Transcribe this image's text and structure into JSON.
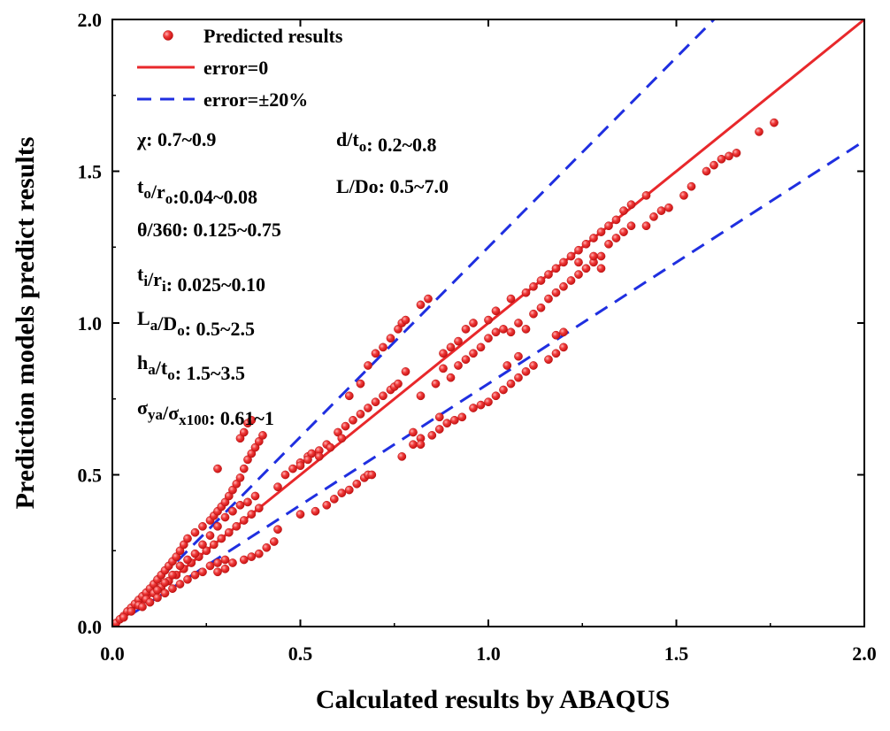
{
  "chart_data": {
    "type": "scatter",
    "xlabel": "Calculated results by ABAQUS",
    "ylabel": "Prediction models predict results",
    "xlim": [
      0.0,
      2.0
    ],
    "ylim": [
      0.0,
      2.0
    ],
    "xticks": [
      "0.0",
      "0.5",
      "1.0",
      "1.5",
      "2.0"
    ],
    "yticks": [
      "0.0",
      "0.5",
      "1.0",
      "1.5",
      "2.0"
    ],
    "grid": false,
    "legend_position": "top-left",
    "legend": [
      {
        "label": "Predicted results",
        "style": "red-dot"
      },
      {
        "label": "error=0",
        "style": "red-solid"
      },
      {
        "label": "error=±20%",
        "style": "blue-dashed"
      }
    ],
    "colors": {
      "points": "#e8282b",
      "error_zero": "#e8282b",
      "error_band": "#1f2fe0"
    },
    "lines": [
      {
        "name": "error=0",
        "slope": 1.0
      },
      {
        "name": "error=+20%",
        "slope": 1.25
      },
      {
        "name": "error=-20%",
        "slope": 0.8
      }
    ],
    "params": [
      {
        "main": "χ: 0.7~0.9",
        "parts": [
          {
            "t": "χ: 0.7~0.9"
          }
        ]
      },
      {
        "main": "d/t: 0.2~0.8",
        "parts": [
          {
            "t": "d/t"
          },
          {
            "t": "o",
            "sub": true
          },
          {
            "t": ": 0.2~0.8"
          }
        ]
      },
      {
        "main": "t/r:0.04~0.08",
        "parts": [
          {
            "t": "t"
          },
          {
            "t": "o",
            "sub": true
          },
          {
            "t": "/r"
          },
          {
            "t": "o",
            "sub": true
          },
          {
            "t": ":0.04~0.08"
          }
        ]
      },
      {
        "main": "L/Do: 0.5~7.0",
        "parts": [
          {
            "t": "L/Do: 0.5~7.0"
          }
        ]
      },
      {
        "main": "θ/360: 0.125~0.75",
        "parts": [
          {
            "t": "θ/360: 0.125~0.75"
          }
        ]
      },
      {
        "main": "t/r: 0.025~0.10",
        "parts": [
          {
            "t": "t"
          },
          {
            "t": "i",
            "sub": true
          },
          {
            "t": "/r"
          },
          {
            "t": "i",
            "sub": true
          },
          {
            "t": ": 0.025~0.10"
          }
        ]
      },
      {
        "main": "L/D: 0.5~2.5",
        "parts": [
          {
            "t": "L"
          },
          {
            "t": "a",
            "sub": true
          },
          {
            "t": "/D"
          },
          {
            "t": "o",
            "sub": true
          },
          {
            "t": ": 0.5~2.5"
          }
        ]
      },
      {
        "main": "h/t: 1.5~3.5",
        "parts": [
          {
            "t": "h"
          },
          {
            "t": "a",
            "sub": true
          },
          {
            "t": "/t"
          },
          {
            "t": "o",
            "sub": true
          },
          {
            "t": ": 1.5~3.5"
          }
        ]
      },
      {
        "main": "σ/σ: 0.61~1",
        "parts": [
          {
            "t": "σ"
          },
          {
            "t": "ya",
            "sub": true
          },
          {
            "t": "/σ"
          },
          {
            "t": "x100",
            "sub": true
          },
          {
            "t": ": 0.61~1"
          }
        ]
      }
    ],
    "series": [
      {
        "name": "Predicted results",
        "points": [
          [
            0.01,
            0.012
          ],
          [
            0.02,
            0.024
          ],
          [
            0.03,
            0.035
          ],
          [
            0.04,
            0.05
          ],
          [
            0.05,
            0.062
          ],
          [
            0.06,
            0.075
          ],
          [
            0.07,
            0.088
          ],
          [
            0.08,
            0.1
          ],
          [
            0.09,
            0.112
          ],
          [
            0.1,
            0.125
          ],
          [
            0.11,
            0.14
          ],
          [
            0.12,
            0.155
          ],
          [
            0.13,
            0.17
          ],
          [
            0.14,
            0.185
          ],
          [
            0.15,
            0.2
          ],
          [
            0.16,
            0.215
          ],
          [
            0.17,
            0.23
          ],
          [
            0.18,
            0.25
          ],
          [
            0.19,
            0.27
          ],
          [
            0.2,
            0.29
          ],
          [
            0.22,
            0.31
          ],
          [
            0.24,
            0.33
          ],
          [
            0.26,
            0.35
          ],
          [
            0.27,
            0.365
          ],
          [
            0.28,
            0.38
          ],
          [
            0.29,
            0.395
          ],
          [
            0.3,
            0.41
          ],
          [
            0.31,
            0.43
          ],
          [
            0.32,
            0.45
          ],
          [
            0.33,
            0.47
          ],
          [
            0.34,
            0.49
          ],
          [
            0.35,
            0.52
          ],
          [
            0.36,
            0.55
          ],
          [
            0.37,
            0.57
          ],
          [
            0.38,
            0.59
          ],
          [
            0.39,
            0.61
          ],
          [
            0.4,
            0.63
          ],
          [
            0.34,
            0.62
          ],
          [
            0.35,
            0.64
          ],
          [
            0.36,
            0.67
          ],
          [
            0.37,
            0.68
          ],
          [
            0.28,
            0.52
          ],
          [
            0.03,
            0.03
          ],
          [
            0.05,
            0.05
          ],
          [
            0.07,
            0.07
          ],
          [
            0.09,
            0.09
          ],
          [
            0.11,
            0.11
          ],
          [
            0.13,
            0.13
          ],
          [
            0.15,
            0.15
          ],
          [
            0.17,
            0.17
          ],
          [
            0.19,
            0.19
          ],
          [
            0.21,
            0.21
          ],
          [
            0.23,
            0.23
          ],
          [
            0.25,
            0.25
          ],
          [
            0.27,
            0.27
          ],
          [
            0.29,
            0.29
          ],
          [
            0.31,
            0.31
          ],
          [
            0.33,
            0.33
          ],
          [
            0.35,
            0.35
          ],
          [
            0.37,
            0.37
          ],
          [
            0.39,
            0.39
          ],
          [
            0.08,
            0.065
          ],
          [
            0.1,
            0.08
          ],
          [
            0.12,
            0.095
          ],
          [
            0.14,
            0.11
          ],
          [
            0.16,
            0.125
          ],
          [
            0.18,
            0.14
          ],
          [
            0.2,
            0.155
          ],
          [
            0.22,
            0.17
          ],
          [
            0.24,
            0.18
          ],
          [
            0.26,
            0.2
          ],
          [
            0.28,
            0.21
          ],
          [
            0.3,
            0.22
          ],
          [
            0.32,
            0.21
          ],
          [
            0.35,
            0.22
          ],
          [
            0.37,
            0.23
          ],
          [
            0.39,
            0.24
          ],
          [
            0.41,
            0.26
          ],
          [
            0.43,
            0.28
          ],
          [
            0.44,
            0.32
          ],
          [
            0.28,
            0.18
          ],
          [
            0.3,
            0.19
          ],
          [
            0.12,
            0.12
          ],
          [
            0.14,
            0.145
          ],
          [
            0.16,
            0.17
          ],
          [
            0.18,
            0.2
          ],
          [
            0.2,
            0.22
          ],
          [
            0.22,
            0.24
          ],
          [
            0.24,
            0.27
          ],
          [
            0.26,
            0.3
          ],
          [
            0.28,
            0.33
          ],
          [
            0.3,
            0.36
          ],
          [
            0.32,
            0.38
          ],
          [
            0.34,
            0.4
          ],
          [
            0.36,
            0.41
          ],
          [
            0.38,
            0.43
          ],
          [
            0.44,
            0.46
          ],
          [
            0.46,
            0.5
          ],
          [
            0.48,
            0.52
          ],
          [
            0.5,
            0.54
          ],
          [
            0.52,
            0.56
          ],
          [
            0.53,
            0.57
          ],
          [
            0.55,
            0.58
          ],
          [
            0.57,
            0.6
          ],
          [
            0.6,
            0.64
          ],
          [
            0.62,
            0.66
          ],
          [
            0.64,
            0.68
          ],
          [
            0.66,
            0.7
          ],
          [
            0.68,
            0.72
          ],
          [
            0.7,
            0.74
          ],
          [
            0.72,
            0.76
          ],
          [
            0.74,
            0.78
          ],
          [
            0.75,
            0.79
          ],
          [
            0.76,
            0.8
          ],
          [
            0.78,
            0.84
          ],
          [
            0.5,
            0.37
          ],
          [
            0.54,
            0.38
          ],
          [
            0.57,
            0.4
          ],
          [
            0.59,
            0.42
          ],
          [
            0.61,
            0.44
          ],
          [
            0.63,
            0.45
          ],
          [
            0.65,
            0.47
          ],
          [
            0.67,
            0.49
          ],
          [
            0.68,
            0.5
          ],
          [
            0.69,
            0.5
          ],
          [
            0.5,
            0.53
          ],
          [
            0.52,
            0.55
          ],
          [
            0.55,
            0.56
          ],
          [
            0.58,
            0.59
          ],
          [
            0.61,
            0.62
          ],
          [
            0.63,
            0.76
          ],
          [
            0.66,
            0.8
          ],
          [
            0.68,
            0.86
          ],
          [
            0.7,
            0.9
          ],
          [
            0.72,
            0.92
          ],
          [
            0.74,
            0.95
          ],
          [
            0.76,
            0.98
          ],
          [
            0.77,
            1.0
          ],
          [
            0.78,
            1.01
          ],
          [
            0.82,
            1.06
          ],
          [
            0.84,
            1.08
          ],
          [
            0.77,
            0.56
          ],
          [
            0.8,
            0.6
          ],
          [
            0.82,
            0.62
          ],
          [
            0.85,
            0.63
          ],
          [
            0.87,
            0.65
          ],
          [
            0.89,
            0.67
          ],
          [
            0.91,
            0.68
          ],
          [
            0.93,
            0.69
          ],
          [
            0.96,
            0.72
          ],
          [
            0.98,
            0.73
          ],
          [
            1.0,
            0.74
          ],
          [
            1.02,
            0.76
          ],
          [
            1.04,
            0.78
          ],
          [
            1.06,
            0.8
          ],
          [
            1.08,
            0.82
          ],
          [
            1.1,
            0.84
          ],
          [
            1.12,
            0.86
          ],
          [
            1.16,
            0.88
          ],
          [
            1.18,
            0.9
          ],
          [
            1.2,
            0.92
          ],
          [
            0.82,
            0.76
          ],
          [
            0.86,
            0.8
          ],
          [
            0.88,
            0.85
          ],
          [
            0.9,
            0.82
          ],
          [
            0.92,
            0.86
          ],
          [
            0.94,
            0.88
          ],
          [
            0.96,
            0.9
          ],
          [
            0.98,
            0.92
          ],
          [
            1.0,
            0.95
          ],
          [
            1.02,
            0.97
          ],
          [
            1.04,
            0.98
          ],
          [
            1.06,
            0.97
          ],
          [
            1.08,
            1.0
          ],
          [
            1.1,
            0.98
          ],
          [
            1.12,
            1.03
          ],
          [
            1.14,
            1.05
          ],
          [
            1.16,
            1.08
          ],
          [
            1.18,
            1.1
          ],
          [
            1.2,
            1.12
          ],
          [
            1.22,
            1.14
          ],
          [
            1.24,
            1.16
          ],
          [
            1.26,
            1.18
          ],
          [
            1.28,
            1.2
          ],
          [
            1.3,
            1.22
          ],
          [
            0.88,
            0.9
          ],
          [
            0.9,
            0.92
          ],
          [
            0.92,
            0.94
          ],
          [
            0.94,
            0.98
          ],
          [
            0.96,
            1.0
          ],
          [
            1.0,
            1.01
          ],
          [
            1.02,
            1.04
          ],
          [
            1.06,
            1.08
          ],
          [
            1.1,
            1.1
          ],
          [
            1.12,
            1.12
          ],
          [
            1.14,
            1.14
          ],
          [
            1.16,
            1.16
          ],
          [
            1.18,
            1.18
          ],
          [
            1.2,
            1.2
          ],
          [
            1.22,
            1.22
          ],
          [
            1.24,
            1.24
          ],
          [
            1.26,
            1.26
          ],
          [
            1.28,
            1.28
          ],
          [
            1.3,
            1.3
          ],
          [
            1.32,
            1.32
          ],
          [
            1.34,
            1.34
          ],
          [
            1.36,
            1.37
          ],
          [
            1.38,
            1.39
          ],
          [
            1.42,
            1.42
          ],
          [
            1.24,
            1.2
          ],
          [
            1.28,
            1.22
          ],
          [
            1.3,
            1.18
          ],
          [
            1.32,
            1.26
          ],
          [
            1.34,
            1.28
          ],
          [
            1.36,
            1.3
          ],
          [
            1.38,
            1.32
          ],
          [
            1.42,
            1.32
          ],
          [
            1.44,
            1.35
          ],
          [
            1.46,
            1.37
          ],
          [
            1.48,
            1.38
          ],
          [
            1.52,
            1.42
          ],
          [
            1.54,
            1.45
          ],
          [
            1.58,
            1.5
          ],
          [
            1.6,
            1.52
          ],
          [
            1.62,
            1.54
          ],
          [
            1.64,
            1.55
          ],
          [
            1.66,
            1.56
          ],
          [
            1.72,
            1.63
          ],
          [
            1.76,
            1.66
          ],
          [
            0.8,
            0.64
          ],
          [
            0.82,
            0.6
          ],
          [
            0.87,
            0.69
          ],
          [
            1.2,
            0.97
          ],
          [
            1.18,
            0.96
          ],
          [
            1.08,
            0.89
          ],
          [
            1.05,
            0.86
          ]
        ]
      }
    ]
  }
}
